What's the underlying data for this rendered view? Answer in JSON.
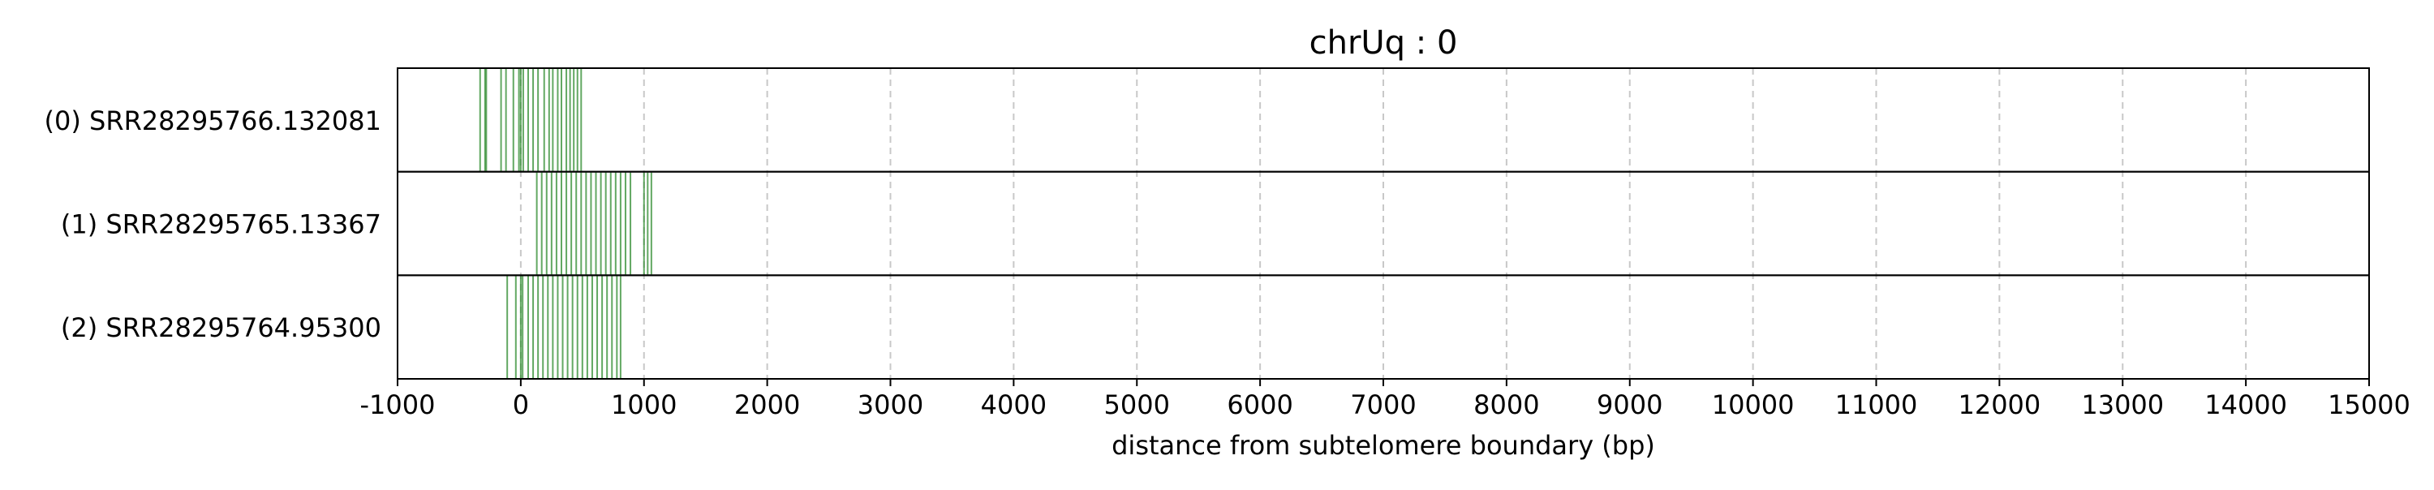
{
  "chart_data": {
    "type": "rug",
    "title": "chrUq : 0",
    "xlabel": "distance from subtelomere boundary (bp)",
    "ylabel": "",
    "xlim": [
      -1000,
      15000
    ],
    "xticks": [
      -1000,
      0,
      1000,
      2000,
      3000,
      4000,
      5000,
      6000,
      7000,
      8000,
      9000,
      10000,
      11000,
      12000,
      13000,
      14000,
      15000
    ],
    "grid": "x-dashed",
    "colors": {
      "mark": "#2e8b2e",
      "grid": "#c8c8c8",
      "frame": "#000000"
    },
    "rows": [
      {
        "label": "(0) SRR28295766.132081",
        "positions": [
          -330,
          -290,
          -280,
          -160,
          -120,
          -60,
          -15,
          0,
          20,
          60,
          100,
          140,
          190,
          230,
          260,
          300,
          330,
          370,
          400,
          430,
          460,
          490
        ]
      },
      {
        "label": "(1) SRR28295765.13367",
        "positions": [
          130,
          170,
          210,
          250,
          290,
          330,
          370,
          410,
          450,
          490,
          530,
          570,
          610,
          650,
          690,
          730,
          770,
          810,
          850,
          890,
          1000,
          1030,
          1060
        ]
      },
      {
        "label": "(2) SRR28295764.95300",
        "positions": [
          -110,
          -40,
          0,
          15,
          60,
          100,
          140,
          180,
          220,
          260,
          300,
          340,
          380,
          420,
          460,
          500,
          540,
          580,
          620,
          660,
          700,
          740,
          780,
          810
        ]
      }
    ]
  }
}
